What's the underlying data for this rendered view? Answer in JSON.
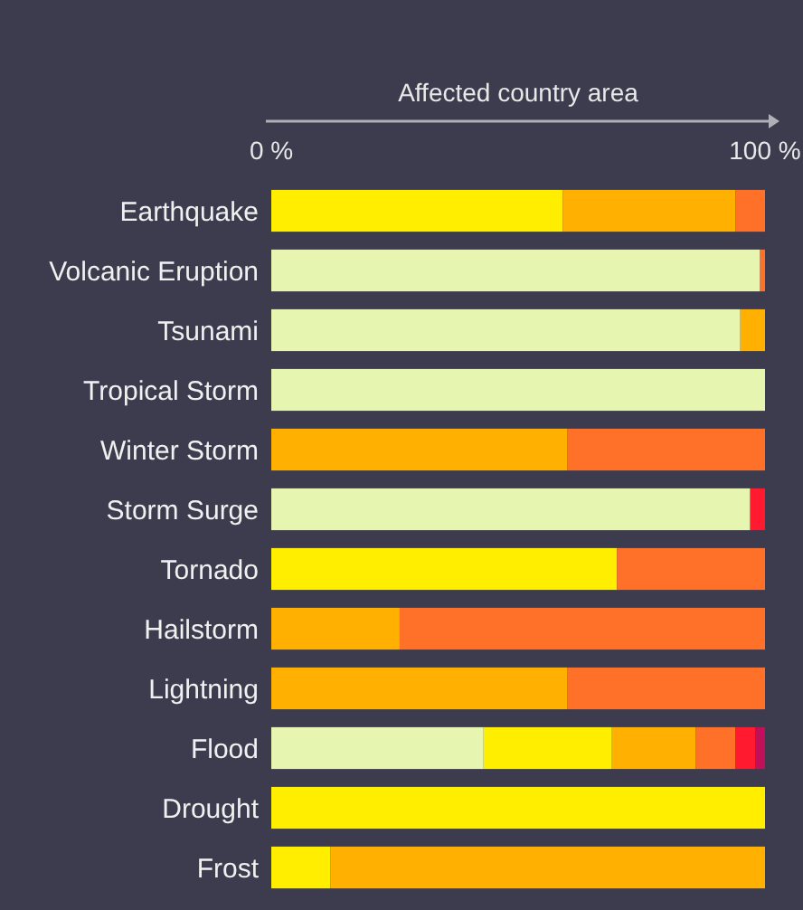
{
  "chart_data": {
    "type": "bar",
    "orientation": "horizontal",
    "stacked": true,
    "xlabel": "Affected country area",
    "categories": [
      "Earthquake",
      "Volcanic Eruption",
      "Tsunami",
      "Tropical Storm",
      "Winter Storm",
      "Storm Surge",
      "Tornado",
      "Hailstorm",
      "Lightning",
      "Flood",
      "Drought",
      "Frost"
    ],
    "xlim": [
      0,
      100
    ],
    "xticks": [
      {
        "value": 0,
        "label": "0 %"
      },
      {
        "value": 100,
        "label": "100 %"
      }
    ],
    "grid": false,
    "series": [
      {
        "color": "#e6f5b0",
        "values": [
          0,
          99,
          95,
          100,
          0,
          97,
          0,
          0,
          0,
          43,
          0,
          0
        ]
      },
      {
        "color": "#ffee00",
        "values": [
          59,
          0,
          0,
          0,
          0,
          0,
          70,
          0,
          0,
          26,
          100,
          12
        ]
      },
      {
        "color": "#ffb000",
        "values": [
          35,
          0,
          5,
          0,
          60,
          0,
          0,
          26,
          60,
          17,
          0,
          88
        ]
      },
      {
        "color": "#ff7028",
        "values": [
          6,
          1,
          0,
          0,
          40,
          0,
          30,
          74,
          40,
          8,
          0,
          0
        ]
      },
      {
        "color": "#ff1a30",
        "values": [
          0,
          0,
          0,
          0,
          0,
          3,
          0,
          0,
          0,
          4,
          0,
          0
        ]
      },
      {
        "color": "#c0105a",
        "values": [
          0,
          0,
          0,
          0,
          0,
          0,
          0,
          0,
          0,
          2,
          0,
          0
        ]
      }
    ]
  }
}
